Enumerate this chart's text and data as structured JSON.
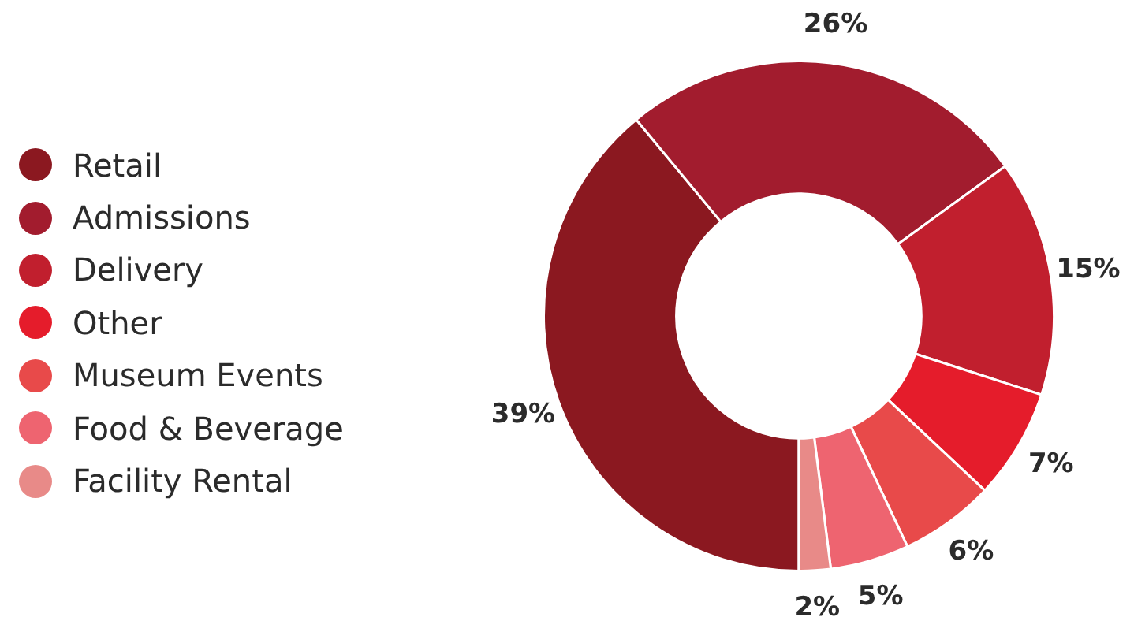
{
  "chart_data": {
    "type": "donut",
    "categories": [
      "Retail",
      "Admissions",
      "Delivery",
      "Other",
      "Museum Events",
      "Food & Beverage",
      "Facility Rental"
    ],
    "values": [
      39,
      26,
      15,
      7,
      6,
      5,
      2
    ],
    "colors": [
      "#8b1820",
      "#a21c2e",
      "#c11f2e",
      "#e51c2b",
      "#e84a4a",
      "#ee6470",
      "#e88a88"
    ],
    "value_labels": [
      "39%",
      "26%",
      "15%",
      "7%",
      "6%",
      "5%",
      "2%"
    ],
    "legend": "left"
  }
}
